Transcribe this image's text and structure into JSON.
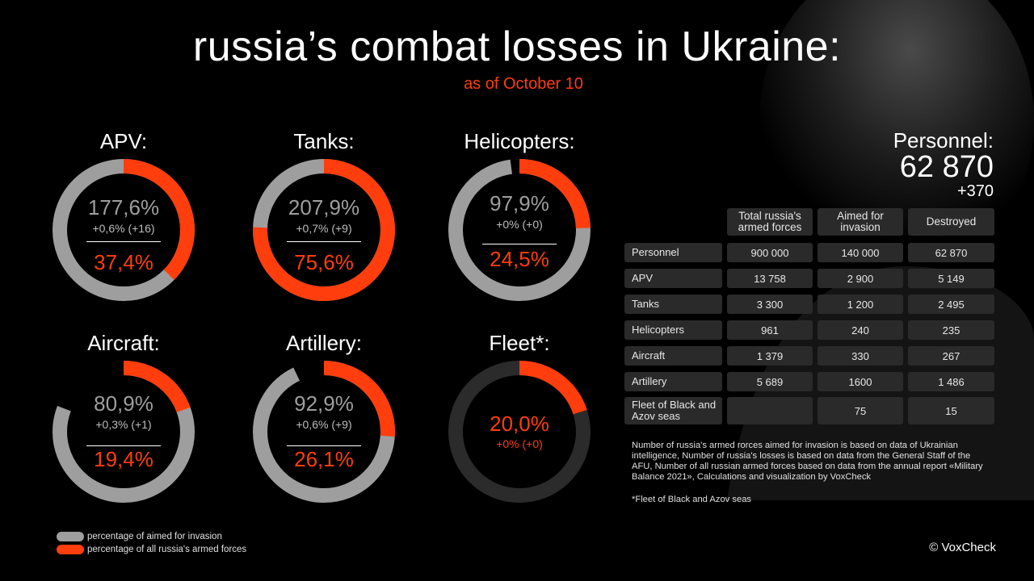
{
  "title": "russia’s combat losses in Ukraine:",
  "subtitle": "as of October 10",
  "colors": {
    "accent": "#ff3d0d",
    "grey": "#9e9e9e",
    "dark": "#2b2b2b",
    "background": "#000000"
  },
  "personnel": {
    "label": "Personnel:",
    "value": "62 870",
    "delta": "+370"
  },
  "chart_data": {
    "type": "donut",
    "items": [
      {
        "label": "APV:",
        "primary": "177,6%",
        "delta": "+0,6% (+16)",
        "secondary": "37,4%",
        "pct_aimed": 177.6,
        "pct_all": 37.4
      },
      {
        "label": "Tanks:",
        "primary": "207,9%",
        "delta": "+0,7% (+9)",
        "secondary": "75,6%",
        "pct_aimed": 207.9,
        "pct_all": 75.6
      },
      {
        "label": "Helicopters:",
        "primary": "97,9%",
        "delta": "+0% (+0)",
        "secondary": "24,5%",
        "pct_aimed": 97.9,
        "pct_all": 24.5
      },
      {
        "label": "Aircraft:",
        "primary": "80,9%",
        "delta": "+0,3% (+1)",
        "secondary": "19,4%",
        "pct_aimed": 80.9,
        "pct_all": 19.4
      },
      {
        "label": "Artillery:",
        "primary": "92,9%",
        "delta": "+0,6% (+9)",
        "secondary": "26,1%",
        "pct_aimed": 92.9,
        "pct_all": 26.1
      },
      {
        "label": "Fleet*:",
        "primary": "",
        "delta": "+0% (+0)",
        "secondary": "20,0%",
        "pct_aimed": 20.0,
        "pct_all": 20.0
      }
    ]
  },
  "table": {
    "headers": [
      "Total russia's armed forces",
      "Aimed for invasion",
      "Destroyed"
    ],
    "rows": [
      {
        "name": "Personnel",
        "total": "900 000",
        "aimed": "140 000",
        "destroyed": "62 870"
      },
      {
        "name": "APV",
        "total": "13 758",
        "aimed": "2 900",
        "destroyed": "5 149"
      },
      {
        "name": "Tanks",
        "total": "3 300",
        "aimed": "1 200",
        "destroyed": "2 495"
      },
      {
        "name": "Helicopters",
        "total": "961",
        "aimed": "240",
        "destroyed": "235"
      },
      {
        "name": "Aircraft",
        "total": "1 379",
        "aimed": "330",
        "destroyed": "267"
      },
      {
        "name": "Artillery",
        "total": "5 689",
        "aimed": "1600",
        "destroyed": "1 486"
      },
      {
        "name": "Fleet of Black and Azov seas",
        "total": "",
        "aimed": "75",
        "destroyed": "15"
      }
    ]
  },
  "note": "Number of russia's armed rorces aimed for invasion  is based on data of Ukrainian intelligence, Number of russia's losses is based on data from the General Staff of the AFU, Number of all russian armed forces based on  data from the annual report «Military Balance 2021», Calculations and visualization by VoxCheck",
  "footnote": "*Fleet of Black and Azov seas",
  "legend": [
    {
      "label": "percentage of aimed for invasion",
      "color": "#9e9e9e"
    },
    {
      "label": "percentage of all russia's armed forces",
      "color": "#ff3d0d"
    }
  ],
  "copyright": "© VoxCheck"
}
